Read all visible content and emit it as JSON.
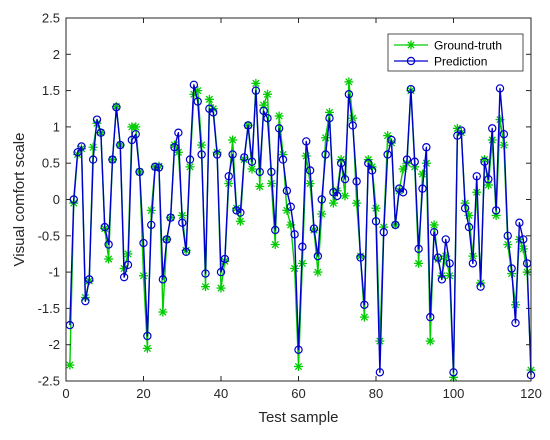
{
  "chart_data": {
    "type": "line",
    "title": "",
    "xlabel": "Test sample",
    "ylabel": "Visual comfort scale",
    "xlim": [
      0,
      120
    ],
    "ylim": [
      -2.5,
      2.5
    ],
    "xticks": [
      0,
      20,
      40,
      60,
      80,
      100,
      120
    ],
    "yticks": [
      -2.5,
      -2,
      -1.5,
      -1,
      -0.5,
      0,
      0.5,
      1,
      1.5,
      2,
      2.5
    ],
    "ytick_labels": [
      "-2.5",
      "-2",
      "-1.5",
      "-1",
      "-0.5",
      "0",
      "0.5",
      "1",
      "1.5",
      "2",
      "2.5"
    ],
    "grid": false,
    "legend_position": "top-right",
    "x": [
      1,
      2,
      3,
      4,
      5,
      6,
      7,
      8,
      9,
      10,
      11,
      12,
      13,
      14,
      15,
      16,
      17,
      18,
      19,
      20,
      21,
      22,
      23,
      24,
      25,
      26,
      27,
      28,
      29,
      30,
      31,
      32,
      33,
      34,
      35,
      36,
      37,
      38,
      39,
      40,
      41,
      42,
      43,
      44,
      45,
      46,
      47,
      48,
      49,
      50,
      51,
      52,
      53,
      54,
      55,
      56,
      57,
      58,
      59,
      60,
      61,
      62,
      63,
      64,
      65,
      66,
      67,
      68,
      69,
      70,
      71,
      72,
      73,
      74,
      75,
      76,
      77,
      78,
      79,
      80,
      81,
      82,
      83,
      84,
      85,
      86,
      87,
      88,
      89,
      90,
      91,
      92,
      93,
      94,
      95,
      96,
      97,
      98,
      99,
      100,
      101,
      102,
      103,
      104,
      105,
      106,
      107,
      108,
      109,
      110,
      111,
      112,
      113,
      114,
      115,
      116,
      117,
      118,
      119,
      120
    ],
    "series": [
      {
        "name": "Ground-truth",
        "color": "#00cc00",
        "marker": "asterisk",
        "values": [
          -2.28,
          -0.05,
          0.62,
          0.7,
          -1.35,
          -1.12,
          0.72,
          1.05,
          0.92,
          -0.4,
          -0.82,
          0.55,
          1.28,
          0.75,
          -0.95,
          -0.75,
          1.0,
          1.0,
          0.38,
          -1.05,
          -2.05,
          -0.15,
          0.45,
          0.46,
          -1.55,
          -0.55,
          -0.25,
          0.75,
          0.65,
          -0.22,
          -0.7,
          0.45,
          1.45,
          1.5,
          0.75,
          -1.2,
          1.38,
          1.25,
          0.65,
          -1.22,
          -0.85,
          0.22,
          0.82,
          -0.12,
          -0.3,
          0.55,
          1.02,
          0.42,
          1.6,
          0.18,
          1.3,
          1.45,
          0.22,
          -0.62,
          1.15,
          0.62,
          -0.15,
          -0.35,
          -0.95,
          -2.3,
          -0.88,
          0.6,
          0.22,
          -0.42,
          -1.0,
          -0.2,
          0.85,
          1.2,
          -0.05,
          0.12,
          0.55,
          0.05,
          1.62,
          1.12,
          -0.05,
          -0.78,
          -1.62,
          0.55,
          0.45,
          -0.12,
          -1.95,
          -0.38,
          0.88,
          0.78,
          -0.35,
          0.12,
          0.42,
          0.5,
          1.5,
          0.45,
          -0.88,
          0.35,
          0.5,
          -1.95,
          -0.35,
          -0.82,
          -1.05,
          -0.78,
          -1.05,
          -2.45,
          0.98,
          0.92,
          -0.05,
          -0.22,
          -0.78,
          0.1,
          -1.15,
          0.55,
          0.2,
          0.82,
          -0.22,
          1.1,
          0.75,
          -0.62,
          -1.02,
          -1.45,
          -0.55,
          -0.68,
          -1.0,
          -2.35
        ]
      },
      {
        "name": "Prediction",
        "color": "#0000cc",
        "marker": "circle",
        "values": [
          -1.73,
          0.0,
          0.65,
          0.73,
          -1.4,
          -1.1,
          0.55,
          1.1,
          0.92,
          -0.38,
          -0.62,
          0.55,
          1.27,
          0.75,
          -1.07,
          -0.9,
          0.82,
          0.9,
          0.38,
          -0.6,
          -1.88,
          -0.35,
          0.45,
          0.44,
          -1.1,
          -0.55,
          -0.25,
          0.72,
          0.92,
          -0.32,
          -0.72,
          0.55,
          1.58,
          1.35,
          0.62,
          -1.02,
          1.25,
          1.2,
          0.62,
          -1.0,
          -0.82,
          0.32,
          0.62,
          -0.15,
          -0.18,
          0.58,
          1.02,
          0.52,
          1.5,
          0.38,
          1.22,
          1.12,
          0.38,
          -0.42,
          0.98,
          0.55,
          0.12,
          -0.1,
          -0.48,
          -2.07,
          -0.65,
          0.8,
          0.4,
          -0.4,
          -0.78,
          0.0,
          0.62,
          1.12,
          0.1,
          0.05,
          0.5,
          0.28,
          1.45,
          1.02,
          0.25,
          -0.8,
          -1.45,
          0.5,
          0.4,
          -0.3,
          -2.38,
          -0.45,
          0.62,
          0.82,
          -0.35,
          0.15,
          0.1,
          0.55,
          1.52,
          0.52,
          -0.68,
          0.15,
          0.72,
          -1.62,
          -0.45,
          -0.8,
          -1.1,
          -0.55,
          -0.88,
          -2.38,
          0.88,
          0.95,
          -0.12,
          -0.38,
          -0.88,
          0.32,
          -1.2,
          0.52,
          0.28,
          0.98,
          -0.15,
          1.53,
          0.9,
          -0.5,
          -0.95,
          -1.7,
          -0.32,
          -0.55,
          -0.88,
          -2.42
        ]
      }
    ]
  }
}
